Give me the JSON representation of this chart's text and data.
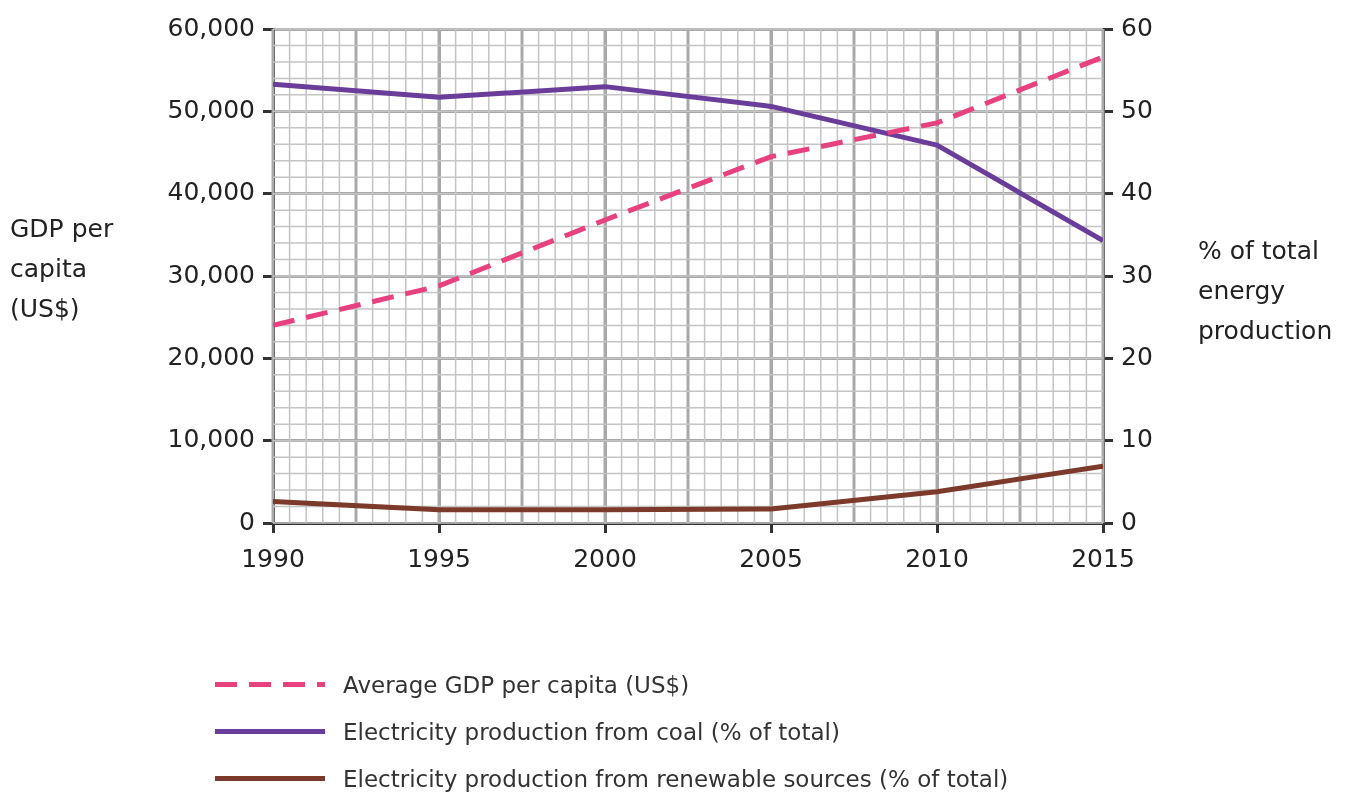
{
  "chart_data": {
    "type": "line",
    "ylabel": "GDP per capita (US$)",
    "y2label": "% of total energy production",
    "x": [
      1990,
      1995,
      2000,
      2005,
      2010,
      2015
    ],
    "xlim": [
      1990,
      2015
    ],
    "xticks": [
      1990,
      1995,
      2000,
      2005,
      2010,
      2015
    ],
    "ylim": [
      0,
      60000
    ],
    "yticks": [
      {
        "value": 0,
        "label": "0"
      },
      {
        "value": 10000,
        "label": "10,000"
      },
      {
        "value": 20000,
        "label": "20,000"
      },
      {
        "value": 30000,
        "label": "30,000"
      },
      {
        "value": 40000,
        "label": "40,000"
      },
      {
        "value": 50000,
        "label": "50,000"
      },
      {
        "value": 60000,
        "label": "60,000"
      }
    ],
    "y2lim": [
      0,
      60
    ],
    "y2ticks": [
      0,
      10,
      20,
      30,
      40,
      50,
      60
    ],
    "grid": true,
    "legend": "bottom",
    "series": [
      {
        "name": "Average GDP per capita (US$)",
        "color": "#e8417f",
        "line_style": "dashed",
        "values": [
          24000,
          28800,
          36800,
          44500,
          48600,
          56600
        ]
      },
      {
        "name": "Electricity production from coal (% of total)",
        "color": "#6a3d9a",
        "axis": "y2",
        "values": [
          53.3,
          51.7,
          53.0,
          50.6,
          45.9,
          34.3
        ]
      },
      {
        "name": "Electricity production from renewable sources (% of total)",
        "color": "#7b3a2a",
        "axis": "y2",
        "values": [
          2.6,
          1.6,
          1.6,
          1.7,
          3.8,
          6.9
        ]
      }
    ]
  }
}
